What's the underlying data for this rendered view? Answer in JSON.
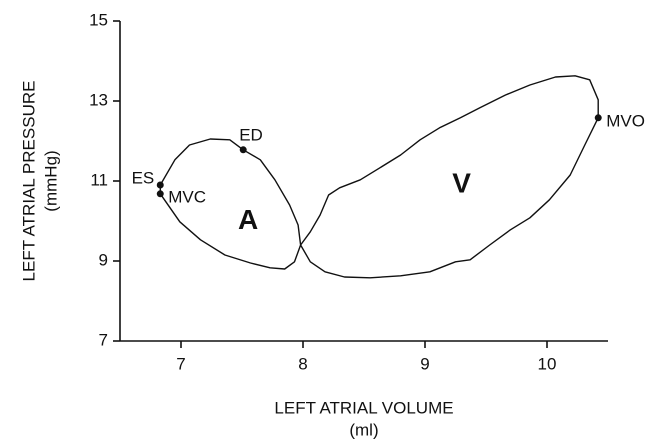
{
  "chart_data": {
    "type": "line",
    "x_label": [
      "LEFT ATRIAL VOLUME",
      "(ml)"
    ],
    "y_label": [
      "LEFT ATRIAL PRESSURE",
      "(mmHg)"
    ],
    "xlim": [
      6.5,
      10.5
    ],
    "xticks": [
      7,
      8,
      9,
      10
    ],
    "ylim": [
      7,
      15
    ],
    "yticks": [
      7,
      9,
      11,
      13,
      15
    ],
    "grid": false,
    "series": [
      {
        "color": "#111111",
        "x": [
          6.83,
          6.99,
          7.16,
          7.36,
          7.57,
          7.73,
          7.85,
          7.93,
          7.98,
          7.96,
          7.89,
          7.77,
          7.65,
          7.51,
          7.4,
          7.24,
          7.07,
          6.95,
          6.83,
          6.83,
          null,
          7.98,
          8.06,
          8.18,
          8.34,
          8.55,
          8.8,
          9.04,
          9.25,
          9.37,
          9.53,
          9.7,
          9.86,
          10.02,
          10.19,
          10.31,
          10.42,
          10.42,
          10.35,
          10.23,
          10.07,
          9.86,
          9.66,
          9.45,
          9.29,
          9.12,
          8.96,
          8.8,
          8.63,
          8.47,
          8.3,
          8.21,
          8.14,
          8.06,
          7.98
        ],
        "values": [
          10.68,
          9.98,
          9.53,
          9.15,
          8.95,
          8.83,
          8.8,
          8.98,
          9.4,
          9.9,
          10.4,
          11.03,
          11.53,
          11.78,
          12.03,
          12.05,
          11.9,
          11.53,
          10.9,
          10.68,
          null,
          9.4,
          8.98,
          8.73,
          8.6,
          8.58,
          8.63,
          8.73,
          8.98,
          9.03,
          9.4,
          9.78,
          10.08,
          10.53,
          11.15,
          11.9,
          12.58,
          13.03,
          13.53,
          13.63,
          13.6,
          13.4,
          13.15,
          12.83,
          12.58,
          12.33,
          12.03,
          11.65,
          11.33,
          11.03,
          10.83,
          10.65,
          10.15,
          9.73,
          9.4
        ]
      }
    ],
    "points": [
      {
        "label": "ES",
        "x": 6.83,
        "y": 10.9,
        "side": "left"
      },
      {
        "label": "MVC",
        "x": 6.83,
        "y": 10.68,
        "side": "right"
      },
      {
        "label": "ED",
        "x": 7.51,
        "y": 11.78,
        "side": "above"
      },
      {
        "label": "MVO",
        "x": 10.42,
        "y": 12.58,
        "side": "right"
      }
    ],
    "annotations": [
      {
        "text": "A",
        "x": 7.55,
        "y": 9.98
      },
      {
        "text": "V",
        "x": 9.3,
        "y": 10.9
      }
    ]
  }
}
